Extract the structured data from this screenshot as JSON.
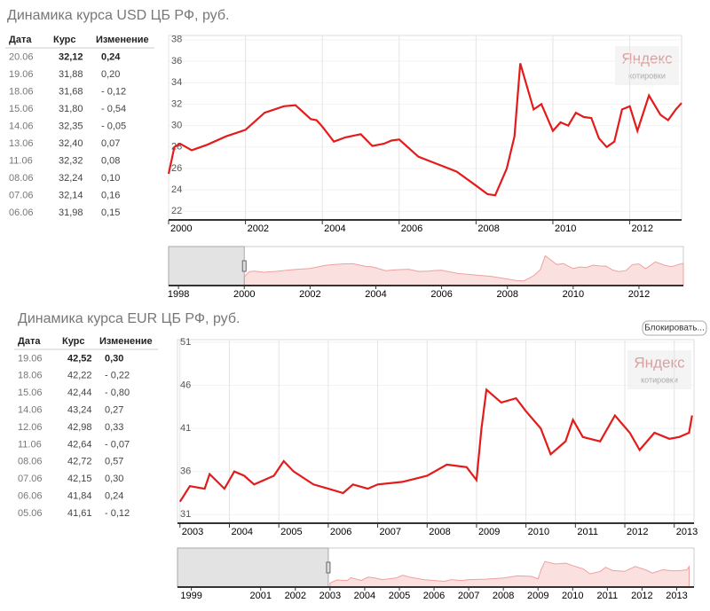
{
  "chart_data": [
    {
      "type": "line",
      "title": "Динамика курса USD ЦБ РФ, руб.",
      "color": "#e31b1b",
      "grid": true,
      "x": [
        2000.0,
        2000.15,
        2000.3,
        2000.6,
        2001.0,
        2001.5,
        2002.0,
        2002.5,
        2003.0,
        2003.3,
        2003.7,
        2003.85,
        2004.0,
        2004.3,
        2004.6,
        2005.0,
        2005.3,
        2005.6,
        2005.8,
        2006.0,
        2006.5,
        2007.0,
        2007.5,
        2008.0,
        2008.3,
        2008.5,
        2008.8,
        2009.0,
        2009.15,
        2009.5,
        2009.7,
        2010.0,
        2010.2,
        2010.4,
        2010.6,
        2010.8,
        2011.0,
        2011.2,
        2011.4,
        2011.6,
        2011.8,
        2012.0,
        2012.2,
        2012.5,
        2012.8,
        2013.0,
        2013.2,
        2013.35
      ],
      "values": [
        25.5,
        28.0,
        28.3,
        27.7,
        28.2,
        29.0,
        29.6,
        31.2,
        31.8,
        31.9,
        30.6,
        30.5,
        29.9,
        28.5,
        28.9,
        29.2,
        28.1,
        28.3,
        28.6,
        28.7,
        27.1,
        26.4,
        25.7,
        24.4,
        23.6,
        23.5,
        26.0,
        29.0,
        35.8,
        31.5,
        32.0,
        29.5,
        30.3,
        30.0,
        31.2,
        30.8,
        30.7,
        28.8,
        28.0,
        28.5,
        31.5,
        31.8,
        29.5,
        32.8,
        31.0,
        30.5,
        31.5,
        32.1
      ],
      "xlim": [
        2000,
        2013.35
      ],
      "ylim": [
        21.2,
        38.4
      ],
      "yticks": [
        22,
        24,
        26,
        28,
        30,
        32,
        34,
        36,
        38
      ],
      "xticks": [
        2000,
        2002,
        2004,
        2006,
        2008,
        2010,
        2012
      ],
      "navigator_xlim": [
        1997.7,
        2013.35
      ],
      "navigator_xticks": [
        1998,
        2000,
        2002,
        2004,
        2006,
        2008,
        2010,
        2012
      ],
      "watermark": "Яндекс",
      "watermark_sub": "котировки"
    },
    {
      "type": "line",
      "title": "Динамика курса EUR ЦБ РФ, руб.",
      "color": "#e31b1b",
      "grid": true,
      "x": [
        2003.0,
        2003.2,
        2003.5,
        2003.6,
        2003.9,
        2004.1,
        2004.3,
        2004.5,
        2004.9,
        2005.1,
        2005.3,
        2005.7,
        2006.0,
        2006.3,
        2006.5,
        2006.8,
        2007.0,
        2007.5,
        2008.0,
        2008.4,
        2008.8,
        2009.0,
        2009.1,
        2009.2,
        2009.5,
        2009.8,
        2010.0,
        2010.3,
        2010.5,
        2010.8,
        2010.95,
        2011.15,
        2011.5,
        2011.8,
        2012.1,
        2012.3,
        2012.6,
        2012.9,
        2013.1,
        2013.3,
        2013.36
      ],
      "values": [
        32.5,
        34.3,
        34.0,
        35.7,
        34.0,
        36.0,
        35.5,
        34.5,
        35.5,
        37.2,
        36.0,
        34.5,
        34.0,
        33.5,
        34.5,
        34.0,
        34.5,
        34.8,
        35.5,
        36.8,
        36.5,
        35.0,
        41.0,
        45.5,
        44.0,
        44.5,
        43.0,
        41.0,
        38.0,
        39.5,
        42.0,
        40.0,
        39.5,
        42.5,
        40.5,
        38.5,
        40.5,
        39.8,
        40.0,
        40.5,
        42.5
      ],
      "xlim": [
        2002.95,
        2013.4
      ],
      "ylim": [
        30,
        51.3
      ],
      "yticks": [
        31,
        36,
        41,
        46,
        51
      ],
      "xticks": [
        2003,
        2004,
        2005,
        2006,
        2007,
        2008,
        2009,
        2010,
        2011,
        2012,
        2013
      ],
      "navigator_xlim": [
        1998.6,
        2013.5
      ],
      "navigator_xticks": [
        1999,
        2001,
        2002,
        2003,
        2004,
        2005,
        2006,
        2007,
        2008,
        2009,
        2010,
        2011,
        2012,
        2013
      ],
      "watermark": "Яндекс",
      "watermark_sub": "котировки"
    }
  ],
  "tables": [
    {
      "headers": [
        "Дата",
        "Курс",
        "Изменение"
      ],
      "rows": [
        [
          "20.06",
          "32,12",
          "0,24"
        ],
        [
          "19.06",
          "31,88",
          "0,20"
        ],
        [
          "18.06",
          "31,68",
          "- 0,12"
        ],
        [
          "15.06",
          "31,80",
          "- 0,54"
        ],
        [
          "14.06",
          "32,35",
          "- 0,05"
        ],
        [
          "13.06",
          "32,40",
          "0,07"
        ],
        [
          "11.06",
          "32,32",
          "0,08"
        ],
        [
          "08.06",
          "32,24",
          "0,10"
        ],
        [
          "07.06",
          "32,14",
          "0,16"
        ],
        [
          "06.06",
          "31,98",
          "0,15"
        ]
      ]
    },
    {
      "headers": [
        "Дата",
        "Курс",
        "Изменение"
      ],
      "rows": [
        [
          "19.06",
          "42,52",
          "0,30"
        ],
        [
          "18.06",
          "42,22",
          "- 0,22"
        ],
        [
          "15.06",
          "42,44",
          "- 0,80"
        ],
        [
          "14.06",
          "43,24",
          "0,27"
        ],
        [
          "12.06",
          "42,98",
          "0,33"
        ],
        [
          "11.06",
          "42,64",
          "- 0,07"
        ],
        [
          "08.06",
          "42,72",
          "0,57"
        ],
        [
          "07.06",
          "42,15",
          "0,30"
        ],
        [
          "06.06",
          "41,84",
          "0,24"
        ],
        [
          "05.06",
          "41,61",
          "- 0,12"
        ]
      ]
    }
  ],
  "button": "Блокировать..."
}
